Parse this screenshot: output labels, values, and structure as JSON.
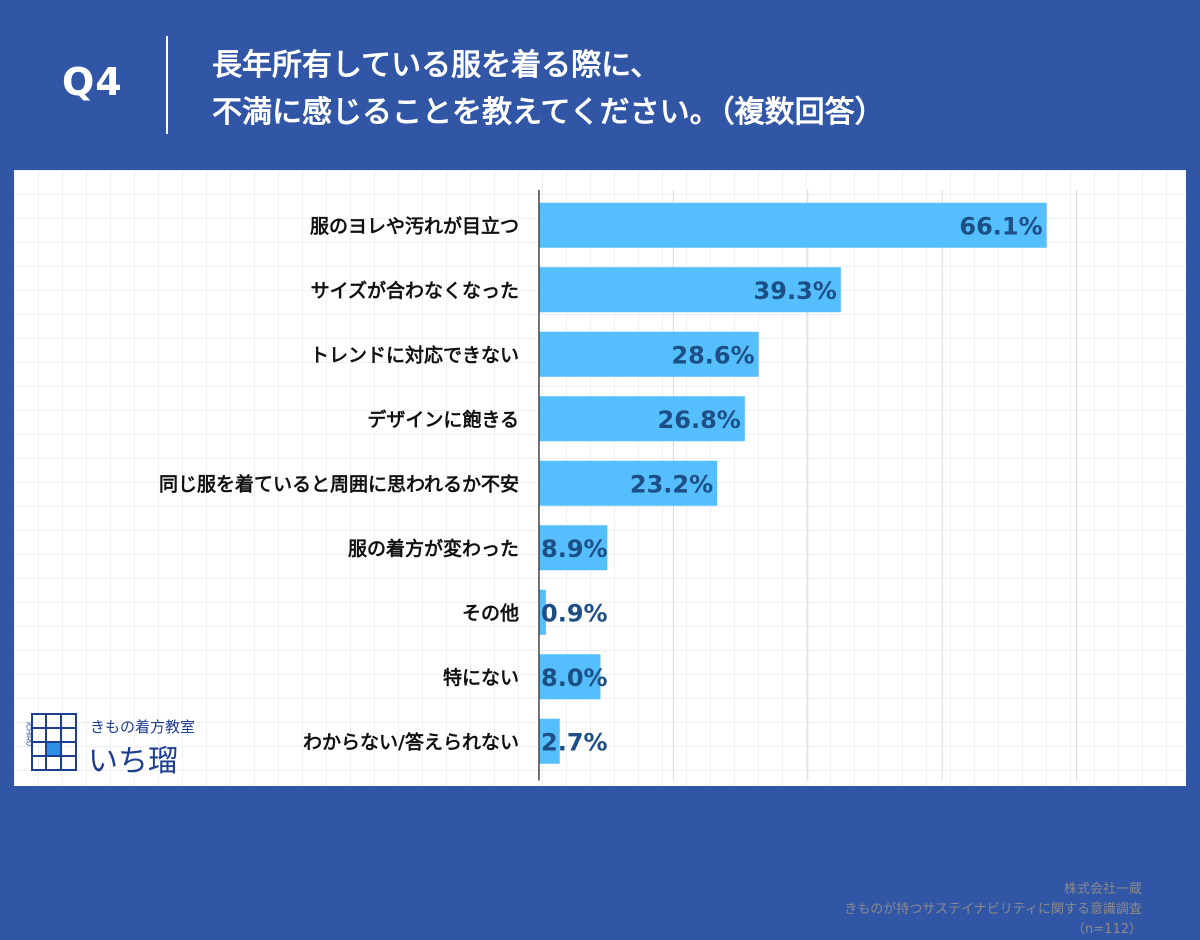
{
  "header": {
    "question_number": "Q4",
    "question_line1": "長年所有している服を着る際に、",
    "question_line2": "不満に感じることを教えてください。（複数回答）"
  },
  "chart_data": {
    "type": "bar",
    "orientation": "horizontal",
    "title": "長年所有している服を着る際に、不満に感じることを教えてください。（複数回答）",
    "categories": [
      "服のヨレや汚れが目立つ",
      "サイズが合わなくなった",
      "トレンドに対応できない",
      "デザインに飽きる",
      "同じ服を着ていると周囲に思われるか不安",
      "服の着方が変わった",
      "その他",
      "特にない",
      "わからない/答えられない"
    ],
    "values": [
      66.1,
      39.3,
      28.6,
      26.8,
      23.2,
      8.9,
      0.9,
      8.0,
      2.7
    ],
    "value_labels": [
      "66.1%",
      "39.3%",
      "28.6%",
      "26.8%",
      "23.2%",
      "8.9%",
      "0.9%",
      "8.0%",
      "2.7%"
    ],
    "xlim": [
      0,
      75
    ],
    "grid_step": 17.5,
    "bar_color": "#55bffd",
    "label_color": "#1d4f86"
  },
  "logo": {
    "small_text": "きもの着方教室",
    "name": "いち瑠",
    "vertical_text": "ICHIRU"
  },
  "source": {
    "company": "株式会社一蔵",
    "survey": "きものが持つサステイナビリティに関する意識調査",
    "sample": "（n=112）"
  },
  "colors": {
    "background": "#3256a6",
    "panel": "#ffffff",
    "bar": "#55bffd"
  }
}
